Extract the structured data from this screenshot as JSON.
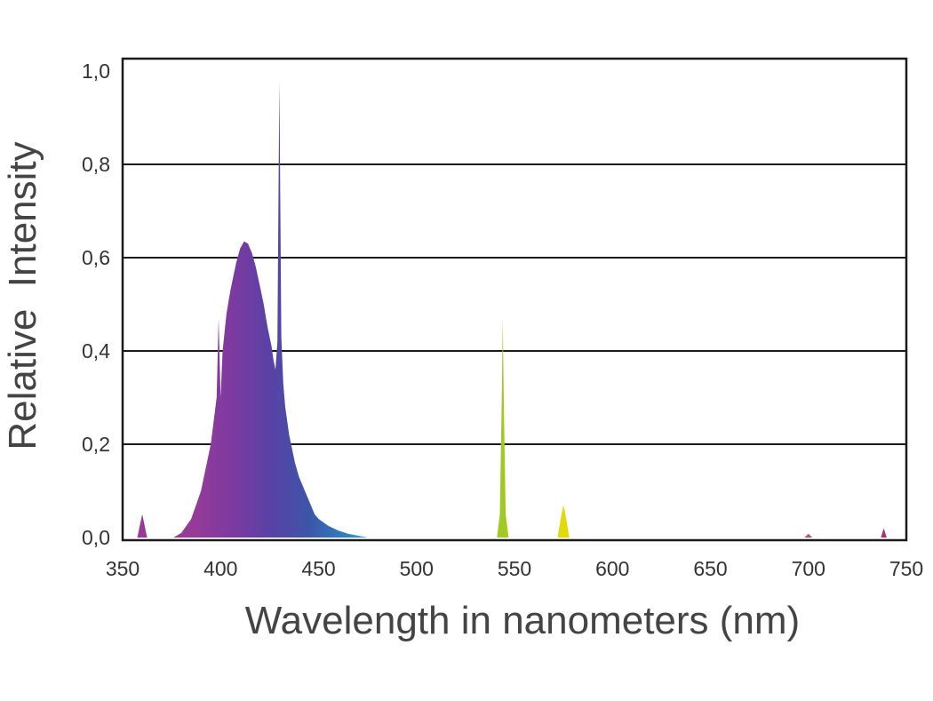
{
  "chart_data": {
    "type": "area",
    "title": "",
    "xlabel": "Wavelength in nanometers (nm)",
    "ylabel": "Relative  Intensity",
    "xlim": [
      350,
      750
    ],
    "ylim": [
      0,
      1.0
    ],
    "x_ticks": [
      350,
      400,
      450,
      500,
      550,
      600,
      650,
      700,
      750
    ],
    "x_tick_labels": [
      "350",
      "400",
      "450",
      "500",
      "550",
      "600",
      "650",
      "700",
      "750"
    ],
    "y_ticks": [
      0,
      0.2,
      0.4,
      0.6,
      0.8,
      1.0
    ],
    "y_tick_labels": [
      "0,0",
      "0,2",
      "0,4",
      "0,6",
      "0,8",
      "1,0"
    ],
    "grid": "horizontal",
    "series": [
      {
        "x": [
          376,
          380,
          385,
          390,
          395,
          398,
          399,
          400,
          401,
          403,
          405,
          408,
          410,
          412,
          414,
          416,
          418,
          420,
          422,
          424,
          426,
          427,
          428,
          429,
          430,
          431,
          432,
          433,
          435,
          438,
          440,
          443,
          445,
          448,
          450,
          455,
          460,
          465,
          470,
          475
        ],
        "values": [
          0,
          0.01,
          0.04,
          0.1,
          0.2,
          0.3,
          0.47,
          0.3,
          0.4,
          0.48,
          0.53,
          0.59,
          0.62,
          0.635,
          0.63,
          0.61,
          0.58,
          0.54,
          0.5,
          0.45,
          0.41,
          0.38,
          0.36,
          0.42,
          0.98,
          0.43,
          0.33,
          0.28,
          0.22,
          0.16,
          0.13,
          0.1,
          0.08,
          0.05,
          0.04,
          0.025,
          0.015,
          0.008,
          0.004,
          0
        ]
      },
      {
        "x": [
          357.5,
          359,
          360,
          361,
          362.5
        ],
        "values": [
          0,
          0.03,
          0.05,
          0.03,
          0
        ]
      },
      {
        "x": [
          541,
          542.5,
          543.5,
          544,
          544.5,
          545.5,
          547
        ],
        "values": [
          0,
          0.05,
          0.3,
          0.47,
          0.3,
          0.05,
          0
        ]
      },
      {
        "x": [
          572,
          574,
          575,
          576,
          578
        ],
        "values": [
          0,
          0.05,
          0.07,
          0.05,
          0
        ]
      },
      {
        "x": [
          698,
          700,
          702
        ],
        "values": [
          0,
          0.008,
          0
        ]
      },
      {
        "x": [
          737,
          738.5,
          740
        ],
        "values": [
          0,
          0.02,
          0
        ]
      }
    ]
  }
}
